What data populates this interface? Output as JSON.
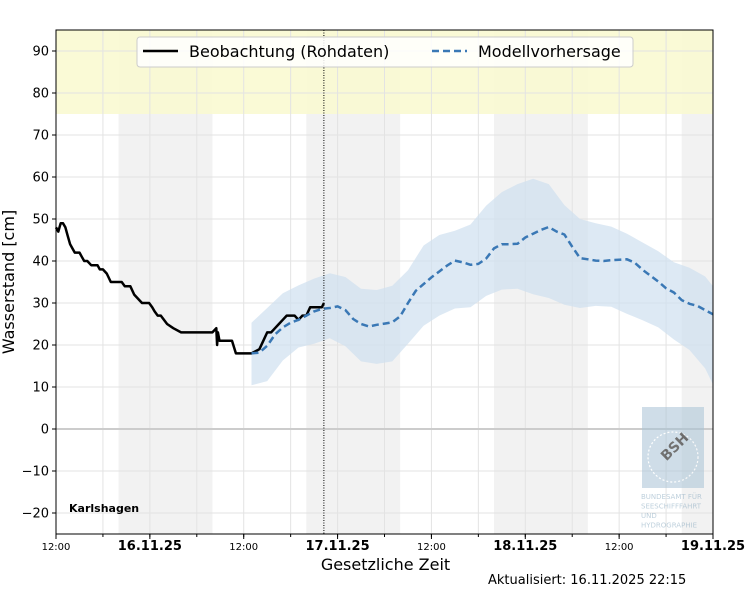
{
  "chart_data": {
    "type": "line",
    "station": "Karlshagen",
    "xlabel": "Gesetzliche Zeit",
    "ylabel": "Wasserstand [cm]",
    "x_unit": "hours since 15.11.2025 12:00",
    "xlim": [
      0,
      84
    ],
    "ylim": [
      -25,
      95
    ],
    "yticks": [
      -20,
      -10,
      0,
      10,
      20,
      30,
      40,
      50,
      60,
      70,
      80,
      90
    ],
    "xticks": [
      {
        "x": 0,
        "label": "12:00",
        "major": false
      },
      {
        "x": 12,
        "label": "16.11.25",
        "major": true
      },
      {
        "x": 24,
        "label": "12:00",
        "major": false
      },
      {
        "x": 36,
        "label": "17.11.25",
        "major": true
      },
      {
        "x": 48,
        "label": "12:00",
        "major": false
      },
      {
        "x": 60,
        "label": "18.11.25",
        "major": true
      },
      {
        "x": 72,
        "label": "12:00",
        "major": false
      },
      {
        "x": 84,
        "label": "19.11.25",
        "major": true
      }
    ],
    "warning_band": {
      "from": 75,
      "to": 95,
      "color": "#fafad2"
    },
    "night_bands": [
      [
        8,
        20
      ],
      [
        32,
        44
      ],
      [
        56,
        68
      ],
      [
        80,
        84
      ]
    ],
    "now_line_x": 34.25,
    "legend": {
      "placement": "top-center"
    },
    "series": [
      {
        "name": "Beobachtung (Rohdaten)",
        "style": "solid",
        "color": "#000000",
        "x": [
          0,
          0.3,
          0.6,
          0.9,
          1.2,
          1.5,
          1.8,
          2.1,
          2.4,
          2.7,
          3.0,
          3.3,
          3.6,
          4.0,
          4.5,
          5.0,
          5.3,
          5.6,
          6.0,
          6.5,
          7.0,
          7.5,
          8.0,
          8.4,
          8.8,
          9.0,
          9.5,
          10.0,
          11.0,
          11.5,
          11.9,
          12.3,
          12.6,
          13.0,
          13.4,
          13.8,
          14.2,
          15.0,
          16.0,
          17.0,
          18.0,
          19.0,
          20.0,
          20.5,
          20.6,
          20.7,
          20.8,
          20.9,
          21.0,
          21.5,
          22.0,
          22.5,
          23.0,
          24.0,
          25.0,
          26.0,
          26.5,
          27.0,
          27.5,
          28.0,
          28.5,
          29.0,
          29.5,
          30.0,
          30.5,
          31.0,
          31.5,
          32.0,
          32.5,
          33.0,
          33.5,
          34.0,
          34.25
        ],
        "y": [
          48,
          47,
          49,
          49,
          48,
          46,
          44,
          43,
          42,
          42,
          42,
          41,
          40,
          40,
          39,
          39,
          39,
          38,
          38,
          37,
          35,
          35,
          35,
          35,
          34,
          34,
          34,
          32,
          30,
          30,
          30,
          29,
          28,
          27,
          27,
          26,
          25,
          24,
          23,
          23,
          23,
          23,
          23,
          24,
          20,
          23,
          22,
          21,
          21,
          21,
          21,
          21,
          18,
          18,
          18,
          19,
          21,
          23,
          23,
          24,
          25,
          26,
          27,
          27,
          27,
          26,
          27,
          27,
          29,
          29,
          29,
          29,
          30
        ]
      },
      {
        "name": "Modellvorhersage",
        "style": "dashed",
        "color": "#3a78b5",
        "x": [
          25.0,
          26.0,
          27.0,
          28.0,
          29.0,
          30.0,
          31.0,
          32.0,
          33.0,
          34.0,
          35.0,
          36.0,
          37.0,
          38.0,
          39.0,
          40.0,
          41.0,
          42.0,
          43.0,
          44.0,
          45.0,
          46.0,
          47.0,
          48.0,
          49.0,
          50.0,
          51.0,
          52.0,
          53.0,
          54.0,
          55.0,
          56.0,
          57.0,
          58.0,
          59.0,
          60.0,
          61.0,
          62.0,
          63.0,
          64.0,
          65.0,
          66.0,
          67.0,
          68.0,
          69.0,
          70.0,
          71.0,
          72.0,
          73.0,
          74.0,
          75.0,
          76.0,
          77.0,
          78.0,
          79.0,
          80.0,
          81.0,
          82.0,
          83.0,
          84.0
        ],
        "y": [
          18.0,
          18.2,
          19.8,
          22.5,
          24.2,
          25.3,
          26.0,
          27.0,
          28.0,
          28.6,
          28.8,
          29.2,
          28.3,
          26.2,
          25.0,
          24.4,
          24.8,
          25.1,
          25.4,
          26.8,
          30.0,
          32.9,
          34.5,
          36.1,
          37.5,
          38.9,
          40.1,
          39.7,
          39.1,
          39.3,
          40.6,
          43.0,
          44.0,
          44.0,
          44.1,
          45.6,
          46.5,
          47.4,
          48.1,
          47.0,
          46.3,
          43.4,
          40.7,
          40.4,
          40.1,
          40.0,
          40.2,
          40.3,
          40.4,
          39.6,
          37.9,
          36.5,
          35.1,
          33.5,
          32.5,
          30.7,
          29.8,
          29.3,
          28.3,
          27.3
        ]
      }
    ],
    "uncertainty_band": {
      "color": "#cfe0ef",
      "x": [
        25,
        27,
        29,
        31,
        33,
        35,
        37,
        39,
        41,
        43,
        45,
        47,
        49,
        51,
        53,
        55,
        57,
        59,
        61,
        63,
        65,
        67,
        69,
        71,
        73,
        75,
        77,
        79,
        81,
        83,
        84
      ],
      "upper": [
        25.3,
        28.8,
        32.3,
        34.2,
        35.8,
        37.1,
        36.2,
        33.4,
        33.1,
        34.1,
        37.8,
        43.7,
        46.2,
        47.2,
        48.7,
        53.2,
        56.4,
        58.3,
        59.6,
        58.3,
        53.3,
        50.0,
        49.0,
        48.2,
        46.5,
        44.4,
        42.3,
        39.7,
        38.4,
        36.3,
        34.0
      ],
      "lower": [
        10.4,
        11.4,
        16.3,
        19.4,
        20.3,
        21.6,
        19.7,
        16.1,
        15.5,
        16.1,
        20.3,
        24.6,
        27.0,
        28.7,
        29.0,
        31.7,
        33.2,
        33.4,
        32.1,
        31.2,
        29.6,
        28.8,
        29.3,
        29.1,
        27.4,
        25.9,
        24.2,
        21.3,
        18.8,
        14.4,
        10.6
      ]
    },
    "logo_text": "BSH",
    "logo_caption": [
      "BUNDESAMT FÜR",
      "SEESCHIFFFAHRT",
      "UND",
      "HYDROGRAPHIE"
    ]
  },
  "updated_label": "Aktualisiert: 16.11.2025 22:15"
}
